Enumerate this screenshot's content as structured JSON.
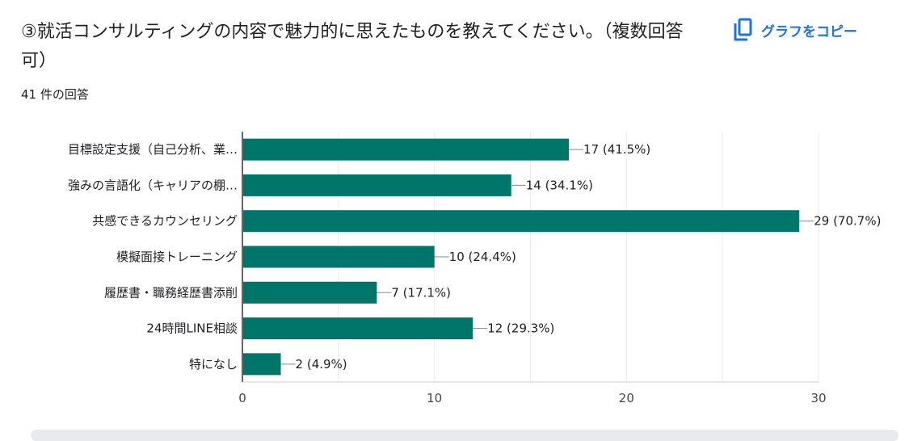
{
  "question": {
    "title": "③就活コンサルティングの内容で魅力的に思えたものを教えてください。（複数回答可）",
    "response_count": "41 件の回答"
  },
  "toolbar": {
    "copy_label": "グラフをコピー",
    "copy_icon": "copy-icon"
  },
  "colors": {
    "bar": "#00756a",
    "accent": "#1a73e8"
  },
  "chart_data": {
    "type": "bar",
    "orientation": "horizontal",
    "categories": [
      "目標設定支援（自己分析、業…",
      "強みの言語化（キャリアの棚…",
      "共感できるカウンセリング",
      "模擬面接トレーニング",
      "履歴書・職務経歴書添削",
      "24時間LINE相談",
      "特になし"
    ],
    "values": [
      17,
      14,
      29,
      10,
      7,
      12,
      2
    ],
    "data_labels": [
      "17 (41.5%)",
      "14 (34.1%)",
      "29 (70.7%)",
      "10 (24.4%)",
      "7 (17.1%)",
      "12 (29.3%)",
      "2 (4.9%)"
    ],
    "xlim": [
      0,
      30
    ],
    "x_ticks": [
      "0",
      "10",
      "20",
      "30"
    ],
    "grid": true,
    "legend": "none"
  }
}
